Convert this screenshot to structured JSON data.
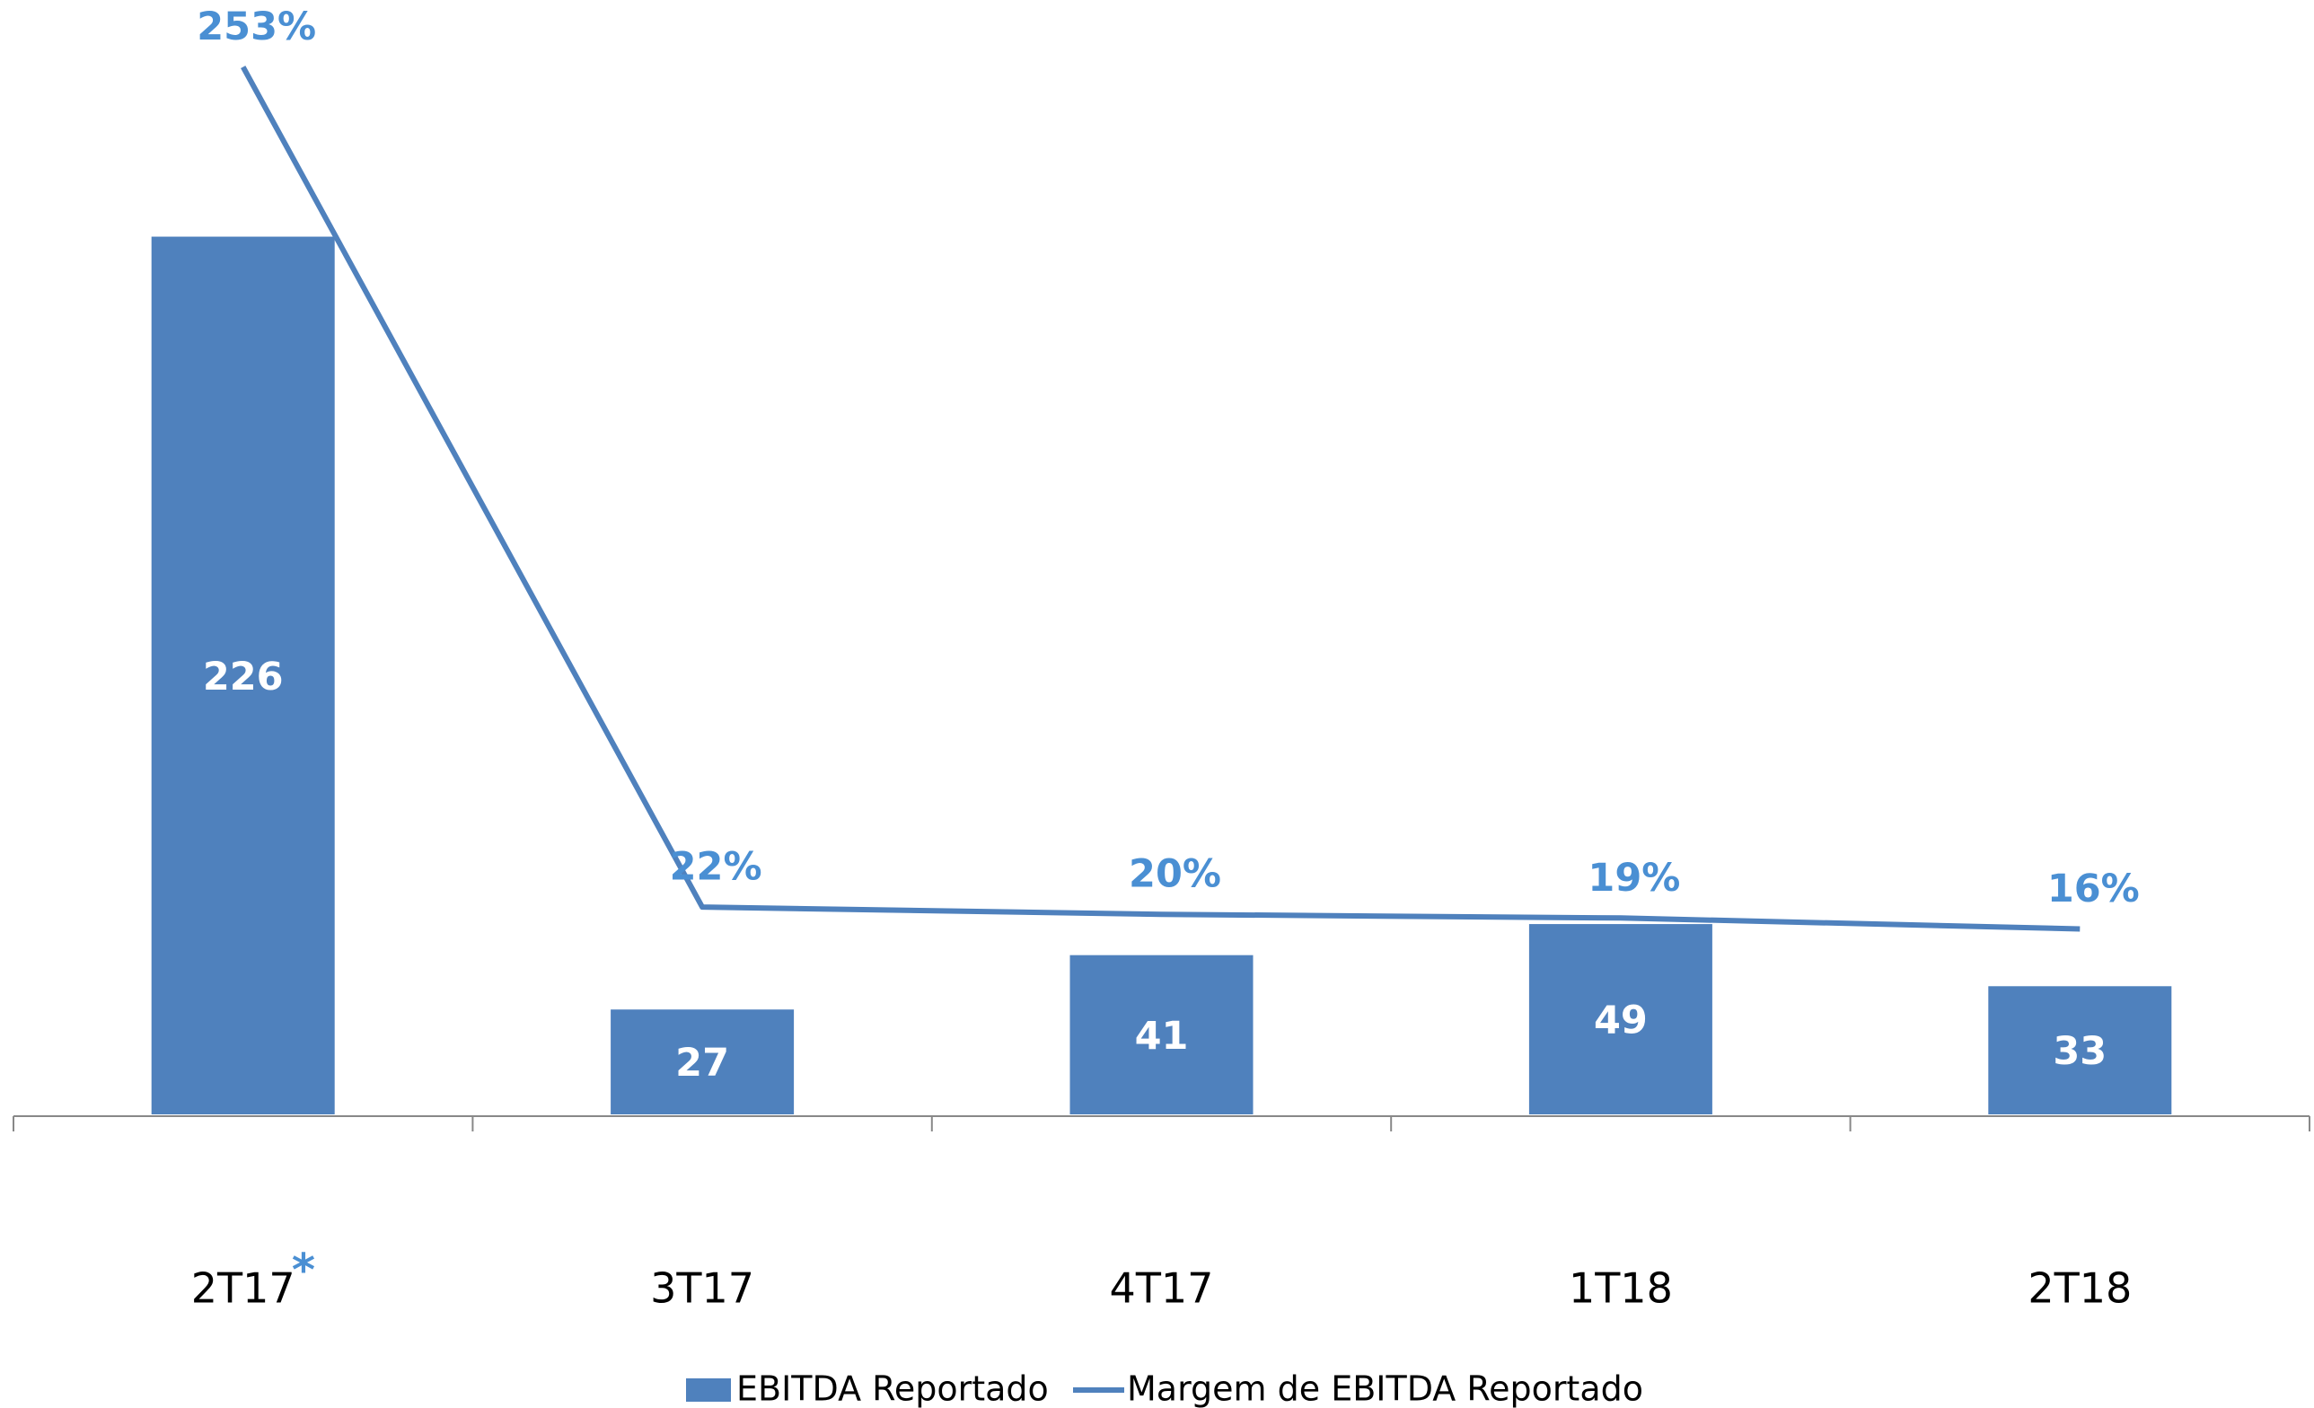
{
  "chart_data": {
    "type": "bar",
    "categories": [
      "2T17",
      "3T17",
      "4T17",
      "1T18",
      "2T18"
    ],
    "annotation": "*",
    "series": [
      {
        "name": "EBITDA Reportado",
        "type": "bar",
        "color": "#4f81bd",
        "values": [
          226,
          27,
          41,
          49,
          33
        ]
      },
      {
        "name": "Margem de EBITDA Reportado",
        "type": "line",
        "axis": "y2",
        "color": "#4f81bd",
        "label_color": "#4a8fd3",
        "values": [
          253,
          22,
          20,
          19,
          16
        ],
        "value_labels": [
          "253%",
          "22%",
          "20%",
          "19%",
          "16%"
        ]
      }
    ],
    "ylim": [
      0,
      280
    ],
    "y2lim": [
      -35,
      264
    ],
    "legend": "bottom"
  }
}
